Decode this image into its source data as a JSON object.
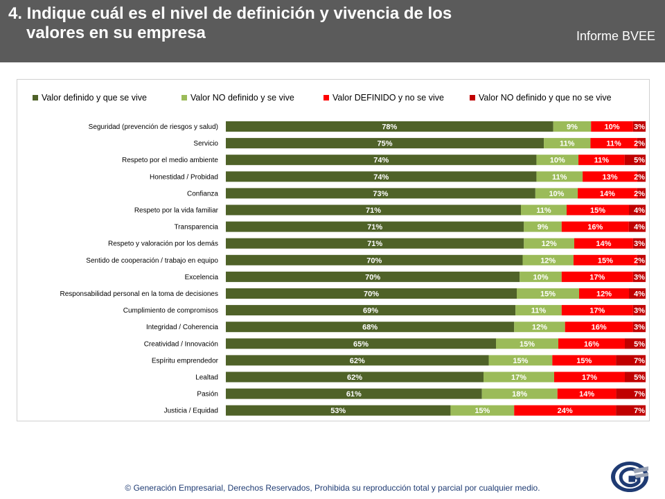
{
  "header": {
    "title_line1": "4. Indique cuál es el nivel de definición y vivencia de los",
    "title_line2": "valores en su empresa",
    "brand": "Informe BVEE"
  },
  "footer": {
    "copyright": "© Generación Empresarial, Derechos Reservados, Prohibida su reproducción total y parcial por cualquier medio."
  },
  "logo": {
    "icon": "generacion-empresarial-logo"
  },
  "colors": {
    "s1": "#4f6228",
    "s2": "#9bbb59",
    "s3": "#ff0000",
    "s4": "#c00000"
  },
  "chart_data": {
    "type": "bar",
    "orientation": "horizontal",
    "stacked": true,
    "legend_position": "top",
    "categories": [
      "Seguridad (prevención de riesgos y salud)",
      "Servicio",
      "Respeto por el medio ambiente",
      "Honestidad / Probidad",
      "Confianza",
      "Respeto por la vida familiar",
      "Transparencia",
      "Respeto y valoración por los demás",
      "Sentido de cooperación / trabajo en equipo",
      "Excelencia",
      "Responsabilidad personal en la toma de decisiones",
      "Cumplimiento de compromisos",
      "Integridad / Coherencia",
      "Creatividad / Innovación",
      "Espíritu emprendedor",
      "Lealtad",
      "Pasión",
      "Justicia / Equidad"
    ],
    "series": [
      {
        "name": "Valor definido y que se vive",
        "values": [
          78,
          75,
          74,
          74,
          73,
          71,
          71,
          71,
          70,
          70,
          70,
          69,
          68,
          65,
          62,
          62,
          61,
          53
        ]
      },
      {
        "name": "Valor NO definido y se vive",
        "values": [
          9,
          11,
          10,
          11,
          10,
          11,
          9,
          12,
          12,
          10,
          15,
          11,
          12,
          15,
          15,
          17,
          18,
          15
        ]
      },
      {
        "name": "Valor DEFINIDO y no se vive",
        "values": [
          10,
          11,
          11,
          13,
          14,
          15,
          16,
          14,
          15,
          17,
          12,
          17,
          16,
          16,
          15,
          17,
          14,
          24
        ]
      },
      {
        "name": "Valor NO definido y que no se vive",
        "values": [
          3,
          2,
          5,
          2,
          2,
          4,
          4,
          3,
          2,
          3,
          4,
          3,
          3,
          5,
          7,
          5,
          7,
          7
        ]
      }
    ],
    "value_suffix": "%",
    "grid": false
  }
}
